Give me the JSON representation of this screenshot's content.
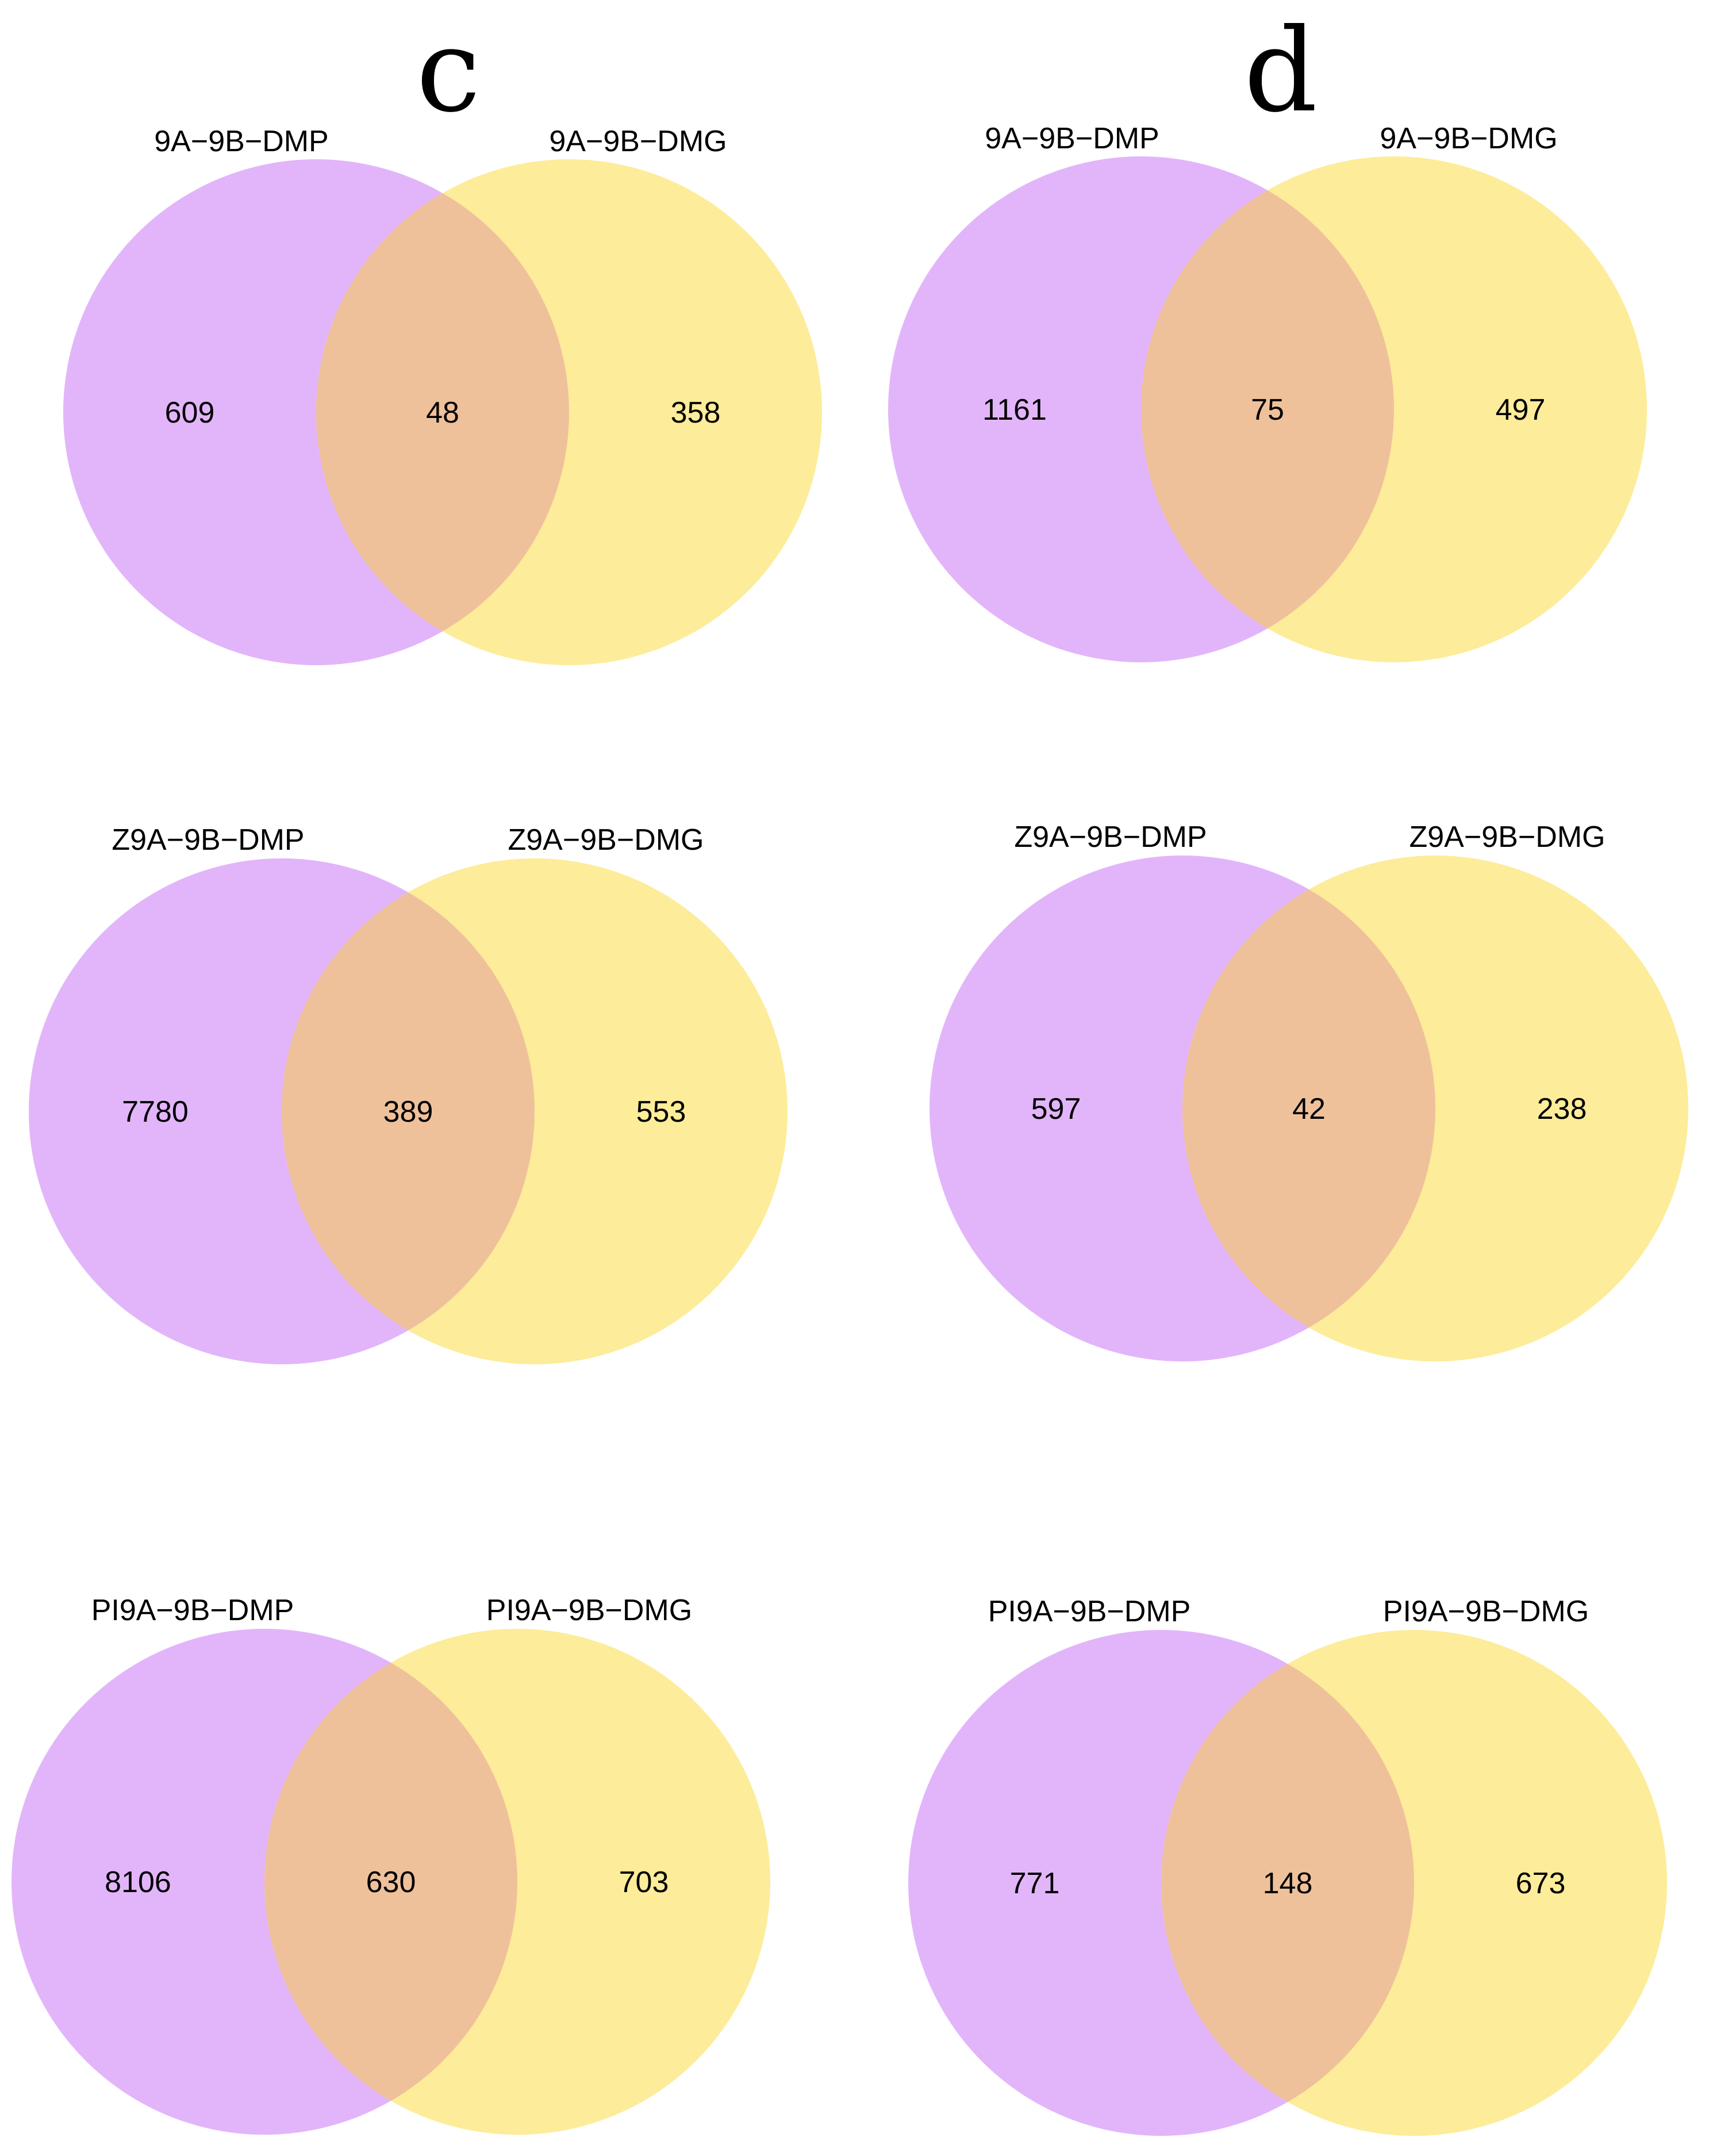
{
  "panels": {
    "c": {
      "letter": "c"
    },
    "d": {
      "letter": "d"
    }
  },
  "colors": {
    "left_set": "#e2b5fa",
    "right_set": "#fdec99",
    "overlap": "#efc19b",
    "text": "#000000"
  },
  "venns": [
    {
      "panel": "c",
      "left_label": "9A−9B−DMP",
      "right_label": "9A−9B−DMG",
      "left_only": "609",
      "both": "48",
      "right_only": "358"
    },
    {
      "panel": "d",
      "left_label": "9A−9B−DMP",
      "right_label": "9A−9B−DMG",
      "left_only": "1161",
      "both": "75",
      "right_only": "497"
    },
    {
      "panel": "c",
      "left_label": "Z9A−9B−DMP",
      "right_label": "Z9A−9B−DMG",
      "left_only": "7780",
      "both": "389",
      "right_only": "553"
    },
    {
      "panel": "d",
      "left_label": "Z9A−9B−DMP",
      "right_label": "Z9A−9B−DMG",
      "left_only": "597",
      "both": "42",
      "right_only": "238"
    },
    {
      "panel": "c",
      "left_label": "PI9A−9B−DMP",
      "right_label": "PI9A−9B−DMG",
      "left_only": "8106",
      "both": "630",
      "right_only": "703"
    },
    {
      "panel": "d",
      "left_label": "PI9A−9B−DMP",
      "right_label": "PI9A−9B−DMG",
      "left_only": "771",
      "both": "148",
      "right_only": "673"
    }
  ]
}
